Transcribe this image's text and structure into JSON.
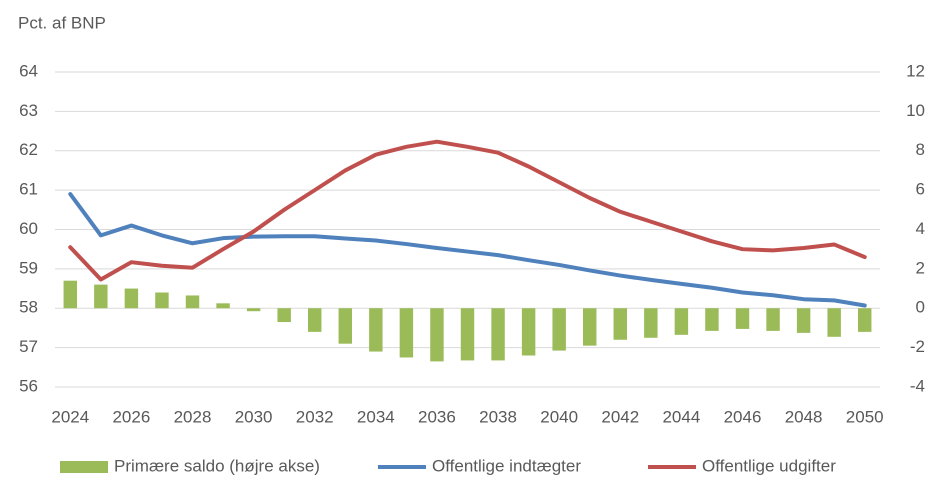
{
  "chart_data": {
    "type": "combo",
    "y_label": "Pct. af BNP",
    "categories": [
      "2024",
      null,
      "2026",
      null,
      "2028",
      null,
      "2030",
      null,
      "2032",
      null,
      "2034",
      null,
      "2036",
      null,
      "2038",
      null,
      "2040",
      null,
      "2042",
      null,
      "2044",
      null,
      "2046",
      null,
      "2048",
      null,
      "2050"
    ],
    "series": [
      {
        "name": "Primære saldo (højre akse)",
        "type": "bar",
        "axis": "y2",
        "color": "#9bbb59",
        "values": [
          1.4,
          1.2,
          1.0,
          0.8,
          0.65,
          0.25,
          -0.15,
          -0.7,
          -1.2,
          -1.8,
          -2.2,
          -2.5,
          -2.7,
          -2.65,
          -2.65,
          -2.4,
          -2.15,
          -1.9,
          -1.6,
          -1.5,
          -1.35,
          -1.15,
          -1.05,
          -1.15,
          -1.25,
          -1.45,
          -1.2
        ]
      },
      {
        "name": "Offentlige indtægter",
        "type": "line",
        "color": "#4f81bd",
        "values": [
          60.9,
          59.85,
          60.1,
          59.85,
          59.65,
          59.78,
          59.82,
          59.83,
          59.83,
          59.77,
          59.72,
          59.63,
          59.53,
          59.44,
          59.35,
          59.22,
          59.1,
          58.96,
          58.83,
          58.72,
          58.62,
          58.52,
          58.4,
          58.33,
          58.23,
          58.2,
          58.07
        ]
      },
      {
        "name": "Offentlige udgifter",
        "type": "line",
        "color": "#c0504d",
        "values": [
          59.55,
          58.73,
          59.17,
          59.08,
          59.03,
          59.5,
          59.95,
          60.5,
          61.0,
          61.5,
          61.9,
          62.1,
          62.23,
          62.1,
          61.95,
          61.6,
          61.2,
          60.8,
          60.45,
          60.2,
          59.95,
          59.7,
          59.5,
          59.47,
          59.53,
          59.62,
          59.3
        ]
      }
    ],
    "ylim": [
      56,
      64
    ],
    "yticks": [
      56,
      57,
      58,
      59,
      60,
      61,
      62,
      63,
      64
    ],
    "y2lim": [
      -4,
      12
    ],
    "y2ticks": [
      -4,
      -2,
      0,
      2,
      4,
      6,
      8,
      10,
      12
    ],
    "grid": true,
    "legend": "bottom"
  }
}
